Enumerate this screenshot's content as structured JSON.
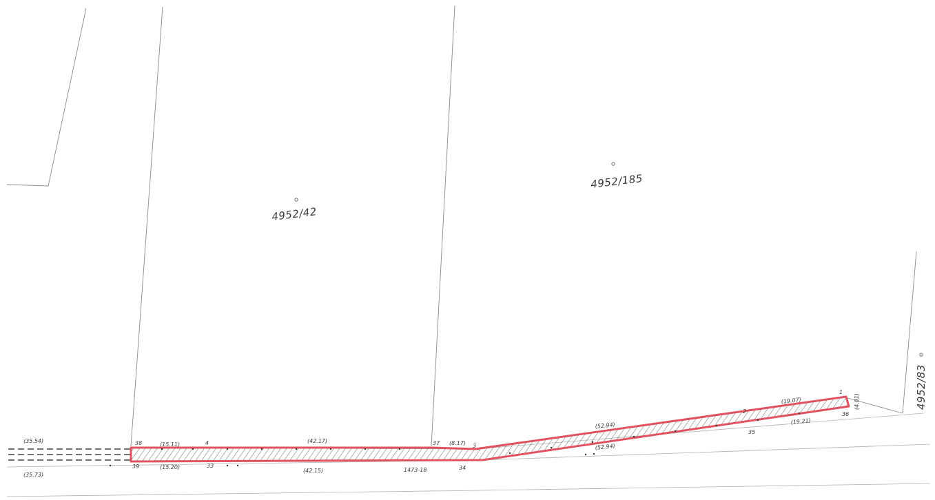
{
  "map": {
    "parcels": [
      {
        "id": "p1",
        "label": "4952/42"
      },
      {
        "id": "p2",
        "label": "4952/185"
      },
      {
        "id": "p3",
        "label": "4952/83"
      }
    ],
    "measurements": {
      "m1": "(35.54)",
      "m2": "(35.73)",
      "m3": "(15.11)",
      "m4": "(15.20)",
      "m5": "(42.17)",
      "m6": "(42.15)",
      "m7": "(8.17)",
      "m8": "(52.94)",
      "m9": "(52.94)",
      "m10": "(19.07)",
      "m11": "(19.21)",
      "m12": "(4.01)"
    },
    "points": {
      "pt38": "38",
      "pt39": "39",
      "pt4": "4",
      "pt33": "33",
      "pt37": "37",
      "pt3": "3",
      "pt34": "34",
      "pt1473": "1473-18",
      "pt2": "2",
      "pt35": "35",
      "pt1": "1",
      "pt36": "36"
    },
    "colors": {
      "highlight": "#e05260",
      "hatch": "#555555",
      "lines": "#8a8a8a"
    }
  }
}
